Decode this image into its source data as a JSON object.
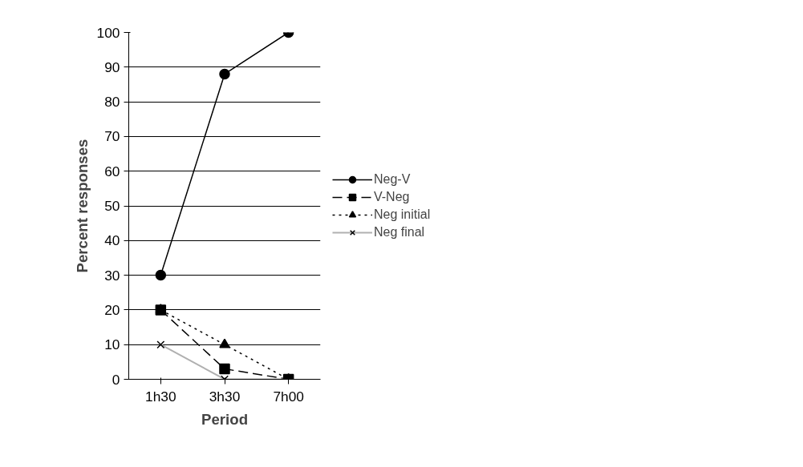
{
  "chart_data": {
    "type": "line",
    "xlabel": "Period",
    "ylabel": "Percent responses",
    "categories": [
      "1h30",
      "3h30",
      "7h00"
    ],
    "ylim": [
      0,
      100
    ],
    "yticks": [
      0,
      10,
      20,
      30,
      40,
      50,
      60,
      70,
      80,
      90,
      100
    ],
    "grid": "y",
    "legend": "right",
    "series": [
      {
        "name": "Neg-V",
        "color": "#000000",
        "values": [
          30,
          88,
          100
        ],
        "marker": "circle",
        "line_style": "solid"
      },
      {
        "name": "V-Neg",
        "color": "#000000",
        "values": [
          20,
          3,
          0
        ],
        "marker": "square",
        "line_style": "dashed"
      },
      {
        "name": "Neg initial",
        "color": "#000000",
        "values": [
          20,
          10,
          0
        ],
        "marker": "triangle",
        "line_style": "dotted"
      },
      {
        "name": "Neg final",
        "color": "#b0b0b0",
        "values": [
          10,
          0,
          0
        ],
        "marker": "cross",
        "line_style": "solid"
      }
    ]
  }
}
